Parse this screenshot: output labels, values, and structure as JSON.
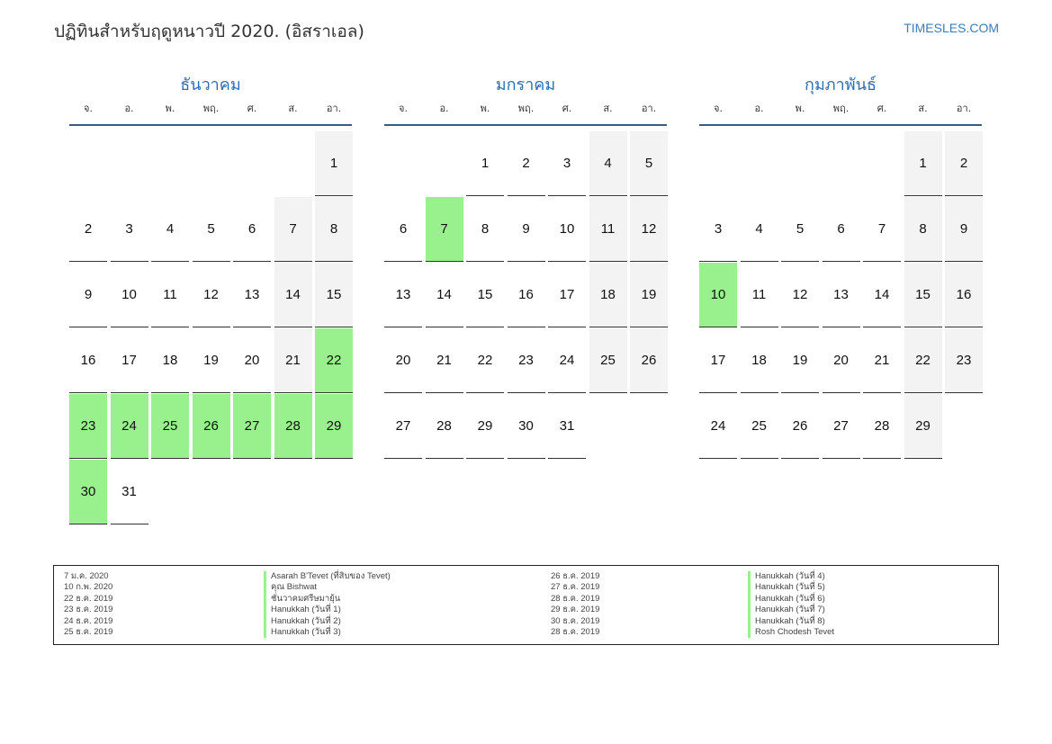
{
  "title": "ปฏิทินสำหรับฤดูหนาวปี 2020. (อิสราเอล)",
  "site": "TIMESLES.COM",
  "weekdays": [
    "จ.",
    "อ.",
    "พ.",
    "พฤ.",
    "ศ.",
    "ส.",
    "อา."
  ],
  "colors": {
    "holiday": "#99f18d",
    "weekend": "#f3f3f3",
    "accent": "#2c6db3"
  },
  "months": [
    {
      "name": "ธันวาคม",
      "start_offset": 6,
      "days_in_month": 31,
      "holidays": [
        22,
        23,
        24,
        25,
        26,
        27,
        28,
        29,
        30
      ]
    },
    {
      "name": "มกราคม",
      "start_offset": 2,
      "days_in_month": 31,
      "holidays": [
        7
      ]
    },
    {
      "name": "กุมภาพันธ์",
      "start_offset": 5,
      "days_in_month": 29,
      "holidays": [
        10
      ]
    }
  ],
  "events": [
    {
      "date": "7 ม.ค. 2020",
      "name": "Asarah B'Tevet (ที่สิบของ Tevet)"
    },
    {
      "date": "10 ก.พ. 2020",
      "name": "คุณ Bishwat"
    },
    {
      "date": "22 ธ.ค. 2019",
      "name": "ชั่นวาคมศรีษมายุ้น"
    },
    {
      "date": "23 ธ.ค. 2019",
      "name": "Hanukkah (วันที่ 1)"
    },
    {
      "date": "24 ธ.ค. 2019",
      "name": "Hanukkah (วันที่ 2)"
    },
    {
      "date": "25 ธ.ค. 2019",
      "name": "Hanukkah (วันที่ 3)"
    },
    {
      "date": "26 ธ.ค. 2019",
      "name": "Hanukkah (วันที่ 4)"
    },
    {
      "date": "27 ธ.ค. 2019",
      "name": "Hanukkah (วันที่ 5)"
    },
    {
      "date": "28 ธ.ค. 2019",
      "name": "Hanukkah (วันที่ 6)"
    },
    {
      "date": "29 ธ.ค. 2019",
      "name": "Hanukkah (วันที่ 7)"
    },
    {
      "date": "30 ธ.ค. 2019",
      "name": "Hanukkah (วันที่ 8)"
    },
    {
      "date": "28 ธ.ค. 2019",
      "name": "Rosh Chodesh Tevet"
    }
  ]
}
